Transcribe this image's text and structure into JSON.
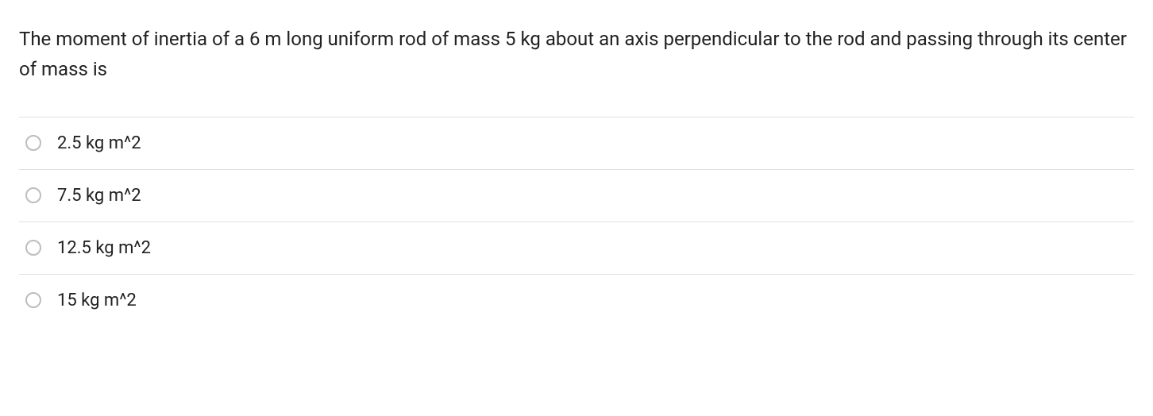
{
  "question": {
    "text": "The moment of inertia of a 6 m long uniform rod of mass 5 kg about an axis perpendicular to the rod and passing through its center of mass is",
    "options": [
      {
        "label": "2.5 kg m^2",
        "selected": false
      },
      {
        "label": "7.5 kg m^2",
        "selected": false
      },
      {
        "label": "12.5 kg m^2",
        "selected": false
      },
      {
        "label": "15 kg m^2",
        "selected": false
      }
    ]
  },
  "colors": {
    "text": "#212121",
    "border": "#e0e0e0",
    "radio_border": "#bdbdbd",
    "background": "#ffffff"
  },
  "typography": {
    "question_fontsize": 24,
    "option_fontsize": 22,
    "line_height": 1.6
  }
}
